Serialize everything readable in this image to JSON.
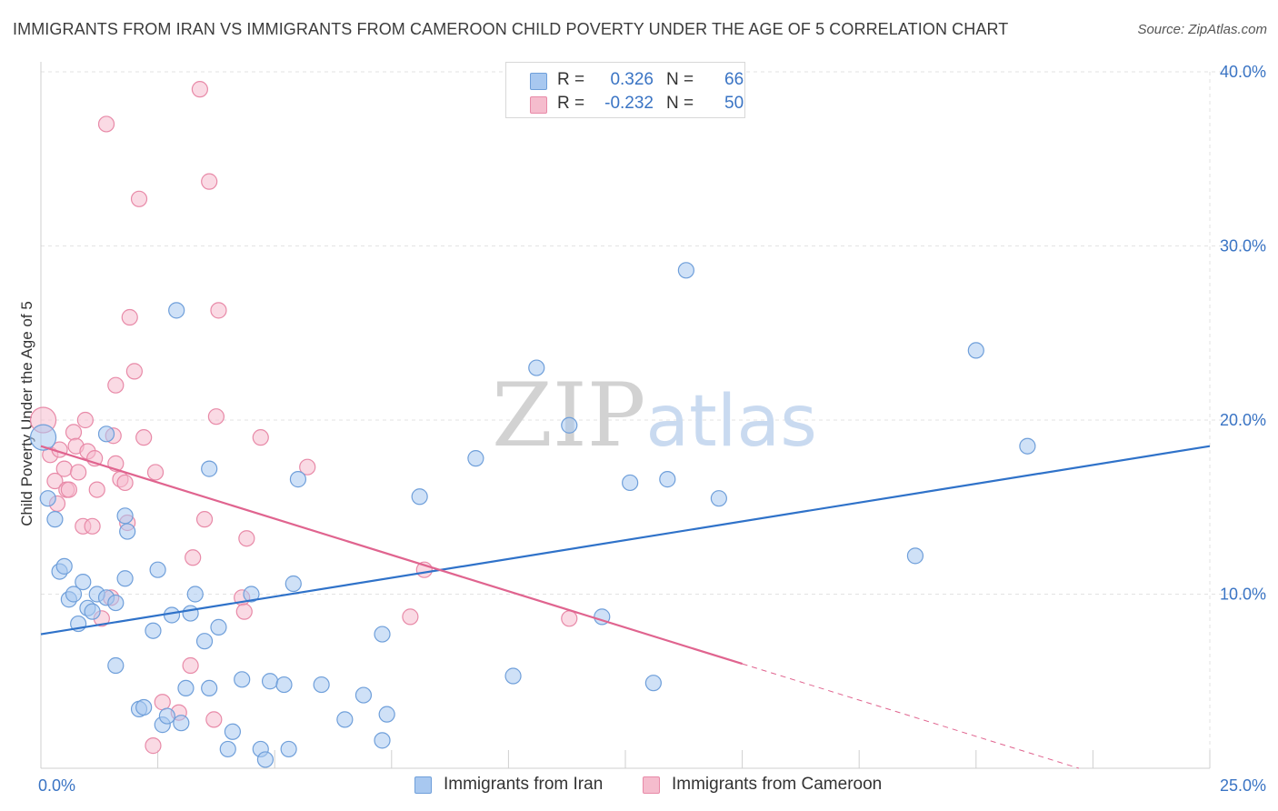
{
  "header": {
    "title": "IMMIGRANTS FROM IRAN VS IMMIGRANTS FROM CAMEROON CHILD POVERTY UNDER THE AGE OF 5 CORRELATION CHART",
    "source": "Source: ZipAtlas.com"
  },
  "watermark": "ZIPatlas",
  "legend": {
    "r_label": "R =",
    "n_label": "N =",
    "iran": {
      "r": "0.326",
      "n": "66"
    },
    "cameroon": {
      "r": "-0.232",
      "n": "50"
    }
  },
  "colors": {
    "iran_fill": "#a8c8f0",
    "iran_stroke": "#6f9fda",
    "iran_line": "#2f72c9",
    "cameroon_fill": "#f5bccd",
    "cameroon_stroke": "#e88aa8",
    "cameroon_line": "#e0648f",
    "grid": "#e3e3e3",
    "tick_text": "#3a74c4"
  },
  "chart_data": {
    "type": "scatter",
    "title": "IMMIGRANTS FROM IRAN VS IMMIGRANTS FROM CAMEROON CHILD POVERTY UNDER THE AGE OF 5 CORRELATION CHART",
    "xlabel": "",
    "ylabel": "Child Poverty Under the Age of 5",
    "xlim": [
      0,
      25
    ],
    "ylim": [
      0,
      40
    ],
    "x_tick_labels": [
      {
        "value": 0,
        "label": "0.0%"
      },
      {
        "value": 25,
        "label": "25.0%"
      }
    ],
    "y_tick_labels": [
      {
        "value": 10,
        "label": "10.0%"
      },
      {
        "value": 20,
        "label": "20.0%"
      },
      {
        "value": 30,
        "label": "30.0%"
      },
      {
        "value": 40,
        "label": "40.0%"
      }
    ],
    "grid": true,
    "legend_position": "top-center",
    "series": [
      {
        "name": "Immigrants from Iran",
        "r": 0.326,
        "n": 66,
        "trend": {
          "x": [
            0,
            25
          ],
          "y": [
            7.7,
            18.5
          ],
          "dashed_from": null
        },
        "points": [
          [
            0.05,
            19.0
          ],
          [
            0.15,
            15.5
          ],
          [
            0.3,
            14.3
          ],
          [
            0.4,
            11.3
          ],
          [
            0.5,
            11.6
          ],
          [
            0.6,
            9.7
          ],
          [
            0.7,
            10.0
          ],
          [
            0.8,
            8.3
          ],
          [
            0.9,
            10.7
          ],
          [
            1.0,
            9.2
          ],
          [
            1.1,
            9.0
          ],
          [
            1.2,
            10.0
          ],
          [
            1.4,
            9.8
          ],
          [
            1.6,
            9.5
          ],
          [
            1.8,
            14.5
          ],
          [
            1.85,
            13.6
          ],
          [
            1.8,
            10.9
          ],
          [
            1.4,
            19.2
          ],
          [
            1.6,
            5.9
          ],
          [
            2.1,
            3.4
          ],
          [
            2.2,
            3.5
          ],
          [
            2.4,
            7.9
          ],
          [
            2.5,
            11.4
          ],
          [
            2.6,
            2.5
          ],
          [
            2.7,
            3.0
          ],
          [
            2.8,
            8.8
          ],
          [
            2.9,
            26.3
          ],
          [
            3.0,
            2.6
          ],
          [
            3.1,
            4.6
          ],
          [
            3.2,
            8.9
          ],
          [
            3.3,
            10.0
          ],
          [
            3.5,
            7.3
          ],
          [
            3.6,
            4.6
          ],
          [
            3.6,
            17.2
          ],
          [
            3.8,
            8.1
          ],
          [
            4.0,
            1.1
          ],
          [
            4.1,
            2.1
          ],
          [
            4.3,
            5.1
          ],
          [
            4.5,
            10.0
          ],
          [
            4.7,
            1.1
          ],
          [
            4.8,
            0.5
          ],
          [
            4.9,
            5.0
          ],
          [
            5.2,
            4.8
          ],
          [
            5.3,
            1.1
          ],
          [
            5.4,
            10.6
          ],
          [
            5.5,
            16.6
          ],
          [
            6.0,
            4.8
          ],
          [
            6.5,
            2.8
          ],
          [
            6.9,
            4.2
          ],
          [
            7.3,
            7.7
          ],
          [
            7.4,
            3.1
          ],
          [
            7.3,
            1.6
          ],
          [
            8.1,
            15.6
          ],
          [
            9.3,
            17.8
          ],
          [
            10.1,
            5.3
          ],
          [
            10.6,
            23.0
          ],
          [
            11.3,
            19.7
          ],
          [
            12.0,
            8.7
          ],
          [
            12.6,
            16.4
          ],
          [
            13.1,
            4.9
          ],
          [
            13.4,
            16.6
          ],
          [
            13.8,
            28.6
          ],
          [
            14.5,
            15.5
          ],
          [
            18.7,
            12.2
          ],
          [
            20.0,
            24.0
          ],
          [
            21.1,
            18.5
          ]
        ]
      },
      {
        "name": "Immigrants from Cameroon",
        "r": -0.232,
        "n": 50,
        "trend": {
          "x": [
            0,
            22.2
          ],
          "y": [
            18.5,
            0.0
          ],
          "dashed_from": 15.0
        },
        "points": [
          [
            0.05,
            20.0
          ],
          [
            0.2,
            18.0
          ],
          [
            0.3,
            16.5
          ],
          [
            0.35,
            15.2
          ],
          [
            0.4,
            18.3
          ],
          [
            0.5,
            17.2
          ],
          [
            0.55,
            16.0
          ],
          [
            0.6,
            16.0
          ],
          [
            0.7,
            19.3
          ],
          [
            0.75,
            18.5
          ],
          [
            0.8,
            17.0
          ],
          [
            0.9,
            13.9
          ],
          [
            0.95,
            20.0
          ],
          [
            1.0,
            18.2
          ],
          [
            1.1,
            13.9
          ],
          [
            1.15,
            17.8
          ],
          [
            1.2,
            16.0
          ],
          [
            1.3,
            8.6
          ],
          [
            1.4,
            37.0
          ],
          [
            1.5,
            9.8
          ],
          [
            1.55,
            19.1
          ],
          [
            1.6,
            22.0
          ],
          [
            1.6,
            17.5
          ],
          [
            1.7,
            16.6
          ],
          [
            1.8,
            16.4
          ],
          [
            1.85,
            14.1
          ],
          [
            1.9,
            25.9
          ],
          [
            2.0,
            22.8
          ],
          [
            2.1,
            32.7
          ],
          [
            2.2,
            19.0
          ],
          [
            2.4,
            1.3
          ],
          [
            2.45,
            17.0
          ],
          [
            2.6,
            3.8
          ],
          [
            2.95,
            3.2
          ],
          [
            3.2,
            5.9
          ],
          [
            3.25,
            12.1
          ],
          [
            3.4,
            39.0
          ],
          [
            3.5,
            14.3
          ],
          [
            3.6,
            33.7
          ],
          [
            3.7,
            2.8
          ],
          [
            3.75,
            20.2
          ],
          [
            3.8,
            26.3
          ],
          [
            4.3,
            9.8
          ],
          [
            4.35,
            9.0
          ],
          [
            4.4,
            13.2
          ],
          [
            4.7,
            19.0
          ],
          [
            5.7,
            17.3
          ],
          [
            7.9,
            8.7
          ],
          [
            8.2,
            11.4
          ],
          [
            11.3,
            8.6
          ]
        ]
      }
    ]
  },
  "bottom_legend": {
    "iran": "Immigrants from Iran",
    "cameroon": "Immigrants from Cameroon"
  }
}
